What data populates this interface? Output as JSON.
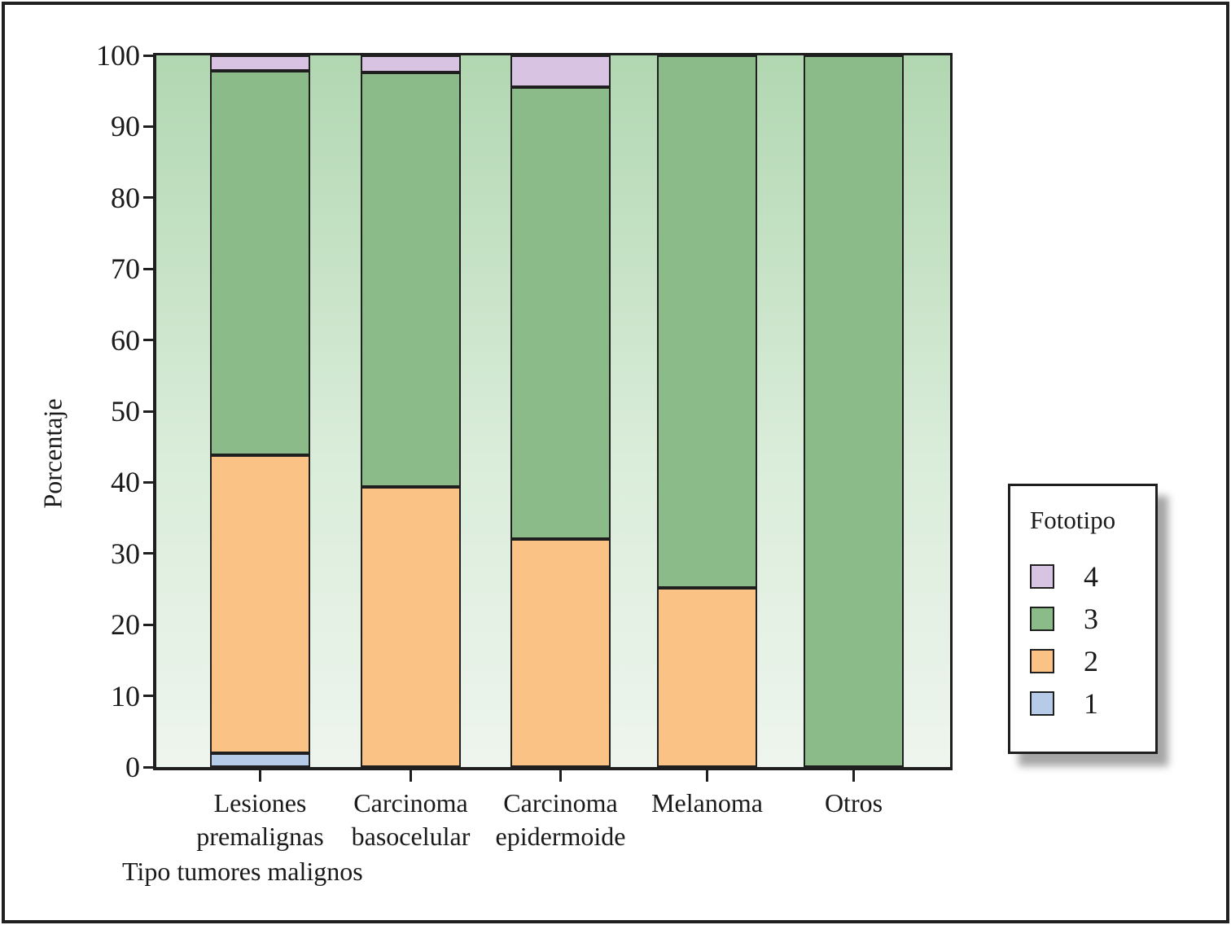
{
  "chart_data": {
    "type": "bar",
    "stacked": true,
    "title": "",
    "xlabel": "Tipo tumores malignos",
    "ylabel": "Porcentaje",
    "ylim": [
      0,
      100
    ],
    "yticks": [
      0,
      10,
      20,
      30,
      40,
      50,
      60,
      70,
      80,
      90,
      100
    ],
    "grid": false,
    "plot_background_gradient": [
      "#b1d7b1",
      "#eef5ee"
    ],
    "outline_color": "#1f1f1f",
    "categories": [
      {
        "label_lines": [
          "Lesiones",
          "premalignas"
        ]
      },
      {
        "label_lines": [
          "Carcinoma",
          "basocelular"
        ]
      },
      {
        "label_lines": [
          "Carcinoma",
          "epidermoide"
        ]
      },
      {
        "label_lines": [
          "Melanoma"
        ]
      },
      {
        "label_lines": [
          "Otros"
        ]
      }
    ],
    "series": [
      {
        "name": "1",
        "color": "#b5cbe8",
        "values": [
          2,
          0,
          0,
          0,
          0
        ]
      },
      {
        "name": "2",
        "color": "#fbc286",
        "values": [
          41.8,
          39.4,
          32,
          25.2,
          0
        ]
      },
      {
        "name": "3",
        "color": "#8cbb8a",
        "values": [
          54,
          58.2,
          63.5,
          74.8,
          100
        ]
      },
      {
        "name": "4",
        "color": "#d8c3e2",
        "values": [
          2.2,
          2.4,
          4.5,
          0,
          0
        ]
      }
    ],
    "legend": {
      "title": "Fototipo",
      "position": "right",
      "entries": [
        {
          "label": "4",
          "color": "#d8c3e2"
        },
        {
          "label": "3",
          "color": "#8cbb8a"
        },
        {
          "label": "2",
          "color": "#fbc286"
        },
        {
          "label": "1",
          "color": "#b5cbe8"
        }
      ]
    }
  }
}
